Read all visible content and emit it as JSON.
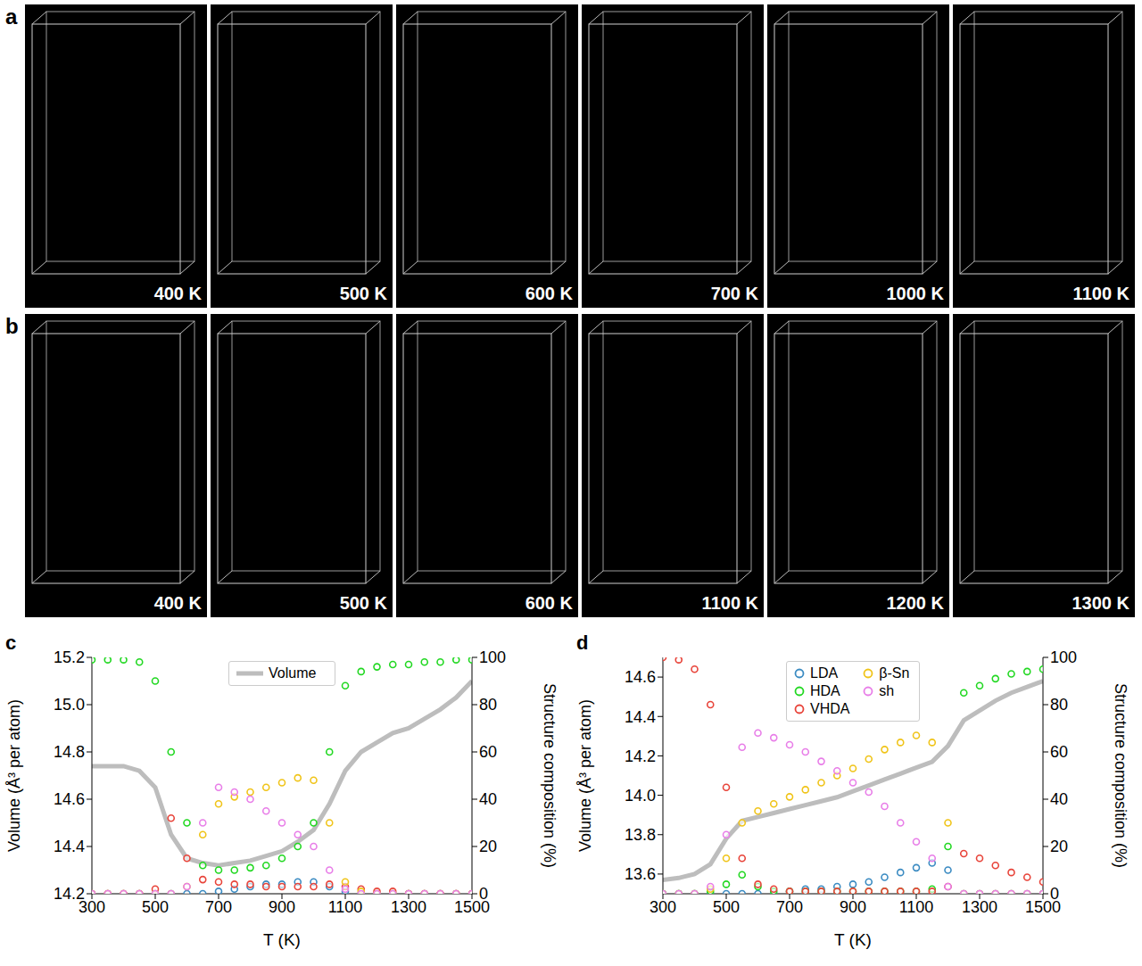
{
  "panels": [
    {
      "letter": "a",
      "temperatures": [
        "400 K",
        "500 K",
        "600 K",
        "700 K",
        "1000 K",
        "1100 K"
      ]
    },
    {
      "letter": "b",
      "temperatures": [
        "400 K",
        "500 K",
        "600 K",
        "1100 K",
        "1200 K",
        "1300 K"
      ]
    }
  ],
  "chart_data": [
    {
      "type": "line",
      "title": "c",
      "xlabel": "T (K)",
      "ylabel": "Volume (Å³ per atom)",
      "y2label": "Structure composition (%)",
      "legend": "upper center",
      "x": [
        300,
        350,
        400,
        450,
        500,
        550,
        600,
        650,
        700,
        750,
        800,
        850,
        900,
        950,
        1000,
        1050,
        1100,
        1150,
        1200,
        1250,
        1300,
        1350,
        1400,
        1450,
        1500
      ],
      "xlim": [
        300,
        1500
      ],
      "xticks": [
        300,
        500,
        700,
        900,
        1100,
        1300,
        1500
      ],
      "ylim": [
        14.2,
        15.2
      ],
      "yticks": [
        14.2,
        14.4,
        14.6,
        14.8,
        {
          "value": 15,
          "label": "15.0"
        },
        15.2
      ],
      "y2lim": [
        0,
        100
      ],
      "y2ticks": [
        0,
        20,
        40,
        60,
        80,
        100
      ],
      "series": [
        {
          "name": "Volume",
          "color": "#bdbdbd",
          "type": "line",
          "legend": "upper center",
          "values": [
            14.74,
            14.74,
            14.74,
            14.72,
            14.65,
            14.45,
            14.35,
            14.33,
            14.32,
            14.33,
            14.34,
            14.36,
            14.38,
            14.42,
            14.47,
            14.58,
            14.72,
            14.8,
            14.84,
            14.88,
            14.9,
            14.94,
            14.98,
            15.03,
            15.1
          ]
        },
        {
          "name": "LDA",
          "color": "#3b8bc2",
          "type": "scatter",
          "marker": "o",
          "axis": "y2",
          "values": [
            0,
            0,
            0,
            0,
            0,
            0,
            0,
            0,
            1,
            2,
            3,
            4,
            4,
            5,
            5,
            3,
            1,
            0,
            0,
            0,
            0,
            0,
            0,
            0,
            0
          ]
        },
        {
          "name": "HDA",
          "color": "#22d822",
          "type": "scatter",
          "marker": "o",
          "axis": "y2",
          "values": [
            99,
            99,
            99,
            98,
            90,
            60,
            30,
            12,
            10,
            10,
            11,
            12,
            15,
            20,
            30,
            60,
            88,
            94,
            96,
            97,
            97,
            98,
            98,
            99,
            99
          ]
        },
        {
          "name": "VHDA",
          "color": "#e8443a",
          "type": "scatter",
          "marker": "o",
          "axis": "y2",
          "values": [
            0,
            0,
            0,
            0,
            2,
            32,
            15,
            6,
            5,
            4,
            4,
            3,
            3,
            3,
            3,
            4,
            3,
            2,
            1,
            1,
            0,
            0,
            0,
            0,
            0
          ]
        },
        {
          "name": "β-Sn",
          "color": "#f0c419",
          "type": "scatter",
          "marker": "o",
          "axis": "y2",
          "values": [
            0,
            0,
            0,
            0,
            0,
            0,
            3,
            25,
            38,
            41,
            43,
            45,
            47,
            49,
            48,
            30,
            5,
            1,
            0,
            0,
            0,
            0,
            0,
            0,
            0
          ]
        },
        {
          "name": "sh",
          "color": "#e87ee8",
          "type": "scatter",
          "marker": "o",
          "axis": "y2",
          "values": [
            0,
            0,
            0,
            0,
            0,
            0,
            3,
            30,
            45,
            43,
            40,
            35,
            30,
            25,
            20,
            10,
            2,
            0,
            0,
            0,
            0,
            0,
            0,
            0,
            0
          ]
        }
      ]
    },
    {
      "type": "line",
      "title": "d",
      "xlabel": "T (K)",
      "ylabel": "Volume (Å³ per atom)",
      "y2label": "Structure composition (%)",
      "legend": "upper center",
      "x": [
        300,
        350,
        400,
        450,
        500,
        550,
        600,
        650,
        700,
        750,
        800,
        850,
        900,
        950,
        1000,
        1050,
        1100,
        1150,
        1200,
        1250,
        1300,
        1350,
        1400,
        1450,
        1500
      ],
      "xlim": [
        300,
        1500
      ],
      "xticks": [
        300,
        500,
        700,
        900,
        1100,
        1300,
        1500
      ],
      "ylim": [
        13.5,
        14.7
      ],
      "yticks": [
        13.6,
        13.8,
        {
          "value": 14,
          "label": "14.0"
        },
        14.2,
        14.4,
        14.6
      ],
      "y2lim": [
        0,
        100
      ],
      "y2ticks": [
        0,
        20,
        40,
        60,
        80,
        100
      ],
      "series": [
        {
          "name": "Volume",
          "color": "#bdbdbd",
          "type": "line",
          "values": [
            13.57,
            13.58,
            13.6,
            13.65,
            13.78,
            13.87,
            13.89,
            13.91,
            13.93,
            13.95,
            13.97,
            13.99,
            14.02,
            14.05,
            14.08,
            14.11,
            14.14,
            14.17,
            14.25,
            14.38,
            14.43,
            14.48,
            14.52,
            14.55,
            14.58
          ]
        },
        {
          "name": "LDA",
          "color": "#3b8bc2",
          "type": "scatter",
          "marker": "o",
          "axis": "y2",
          "legend": "upper center",
          "values": [
            0,
            0,
            0,
            0,
            0,
            0,
            0,
            0,
            1,
            2,
            2,
            3,
            4,
            5,
            7,
            9,
            11,
            13,
            10,
            0,
            0,
            0,
            0,
            0,
            0
          ]
        },
        {
          "name": "HDA",
          "color": "#22d822",
          "type": "scatter",
          "marker": "o",
          "axis": "y2",
          "legend": "upper center",
          "values": [
            0,
            0,
            0,
            1,
            4,
            8,
            3,
            1,
            1,
            1,
            1,
            1,
            1,
            1,
            1,
            1,
            1,
            2,
            20,
            85,
            88,
            91,
            93,
            94,
            95
          ]
        },
        {
          "name": "VHDA",
          "color": "#e8443a",
          "type": "scatter",
          "marker": "o",
          "axis": "y2",
          "legend": "upper center",
          "values": [
            100,
            99,
            95,
            80,
            45,
            15,
            4,
            2,
            1,
            1,
            1,
            1,
            1,
            1,
            1,
            1,
            1,
            1,
            3,
            17,
            15,
            12,
            9,
            7,
            5
          ]
        },
        {
          "name": "β-Sn",
          "color": "#f0c419",
          "type": "scatter",
          "marker": "o",
          "axis": "y2",
          "legend": "upper center",
          "values": [
            0,
            0,
            0,
            2,
            15,
            30,
            35,
            38,
            41,
            44,
            47,
            50,
            53,
            57,
            61,
            64,
            67,
            64,
            30,
            0,
            0,
            0,
            0,
            0,
            0
          ]
        },
        {
          "name": "sh",
          "color": "#e87ee8",
          "type": "scatter",
          "marker": "o",
          "axis": "y2",
          "legend": "upper center",
          "values": [
            0,
            0,
            0,
            3,
            25,
            62,
            68,
            66,
            63,
            60,
            56,
            52,
            47,
            43,
            37,
            30,
            22,
            15,
            3,
            0,
            0,
            0,
            0,
            0,
            0
          ]
        }
      ]
    }
  ]
}
